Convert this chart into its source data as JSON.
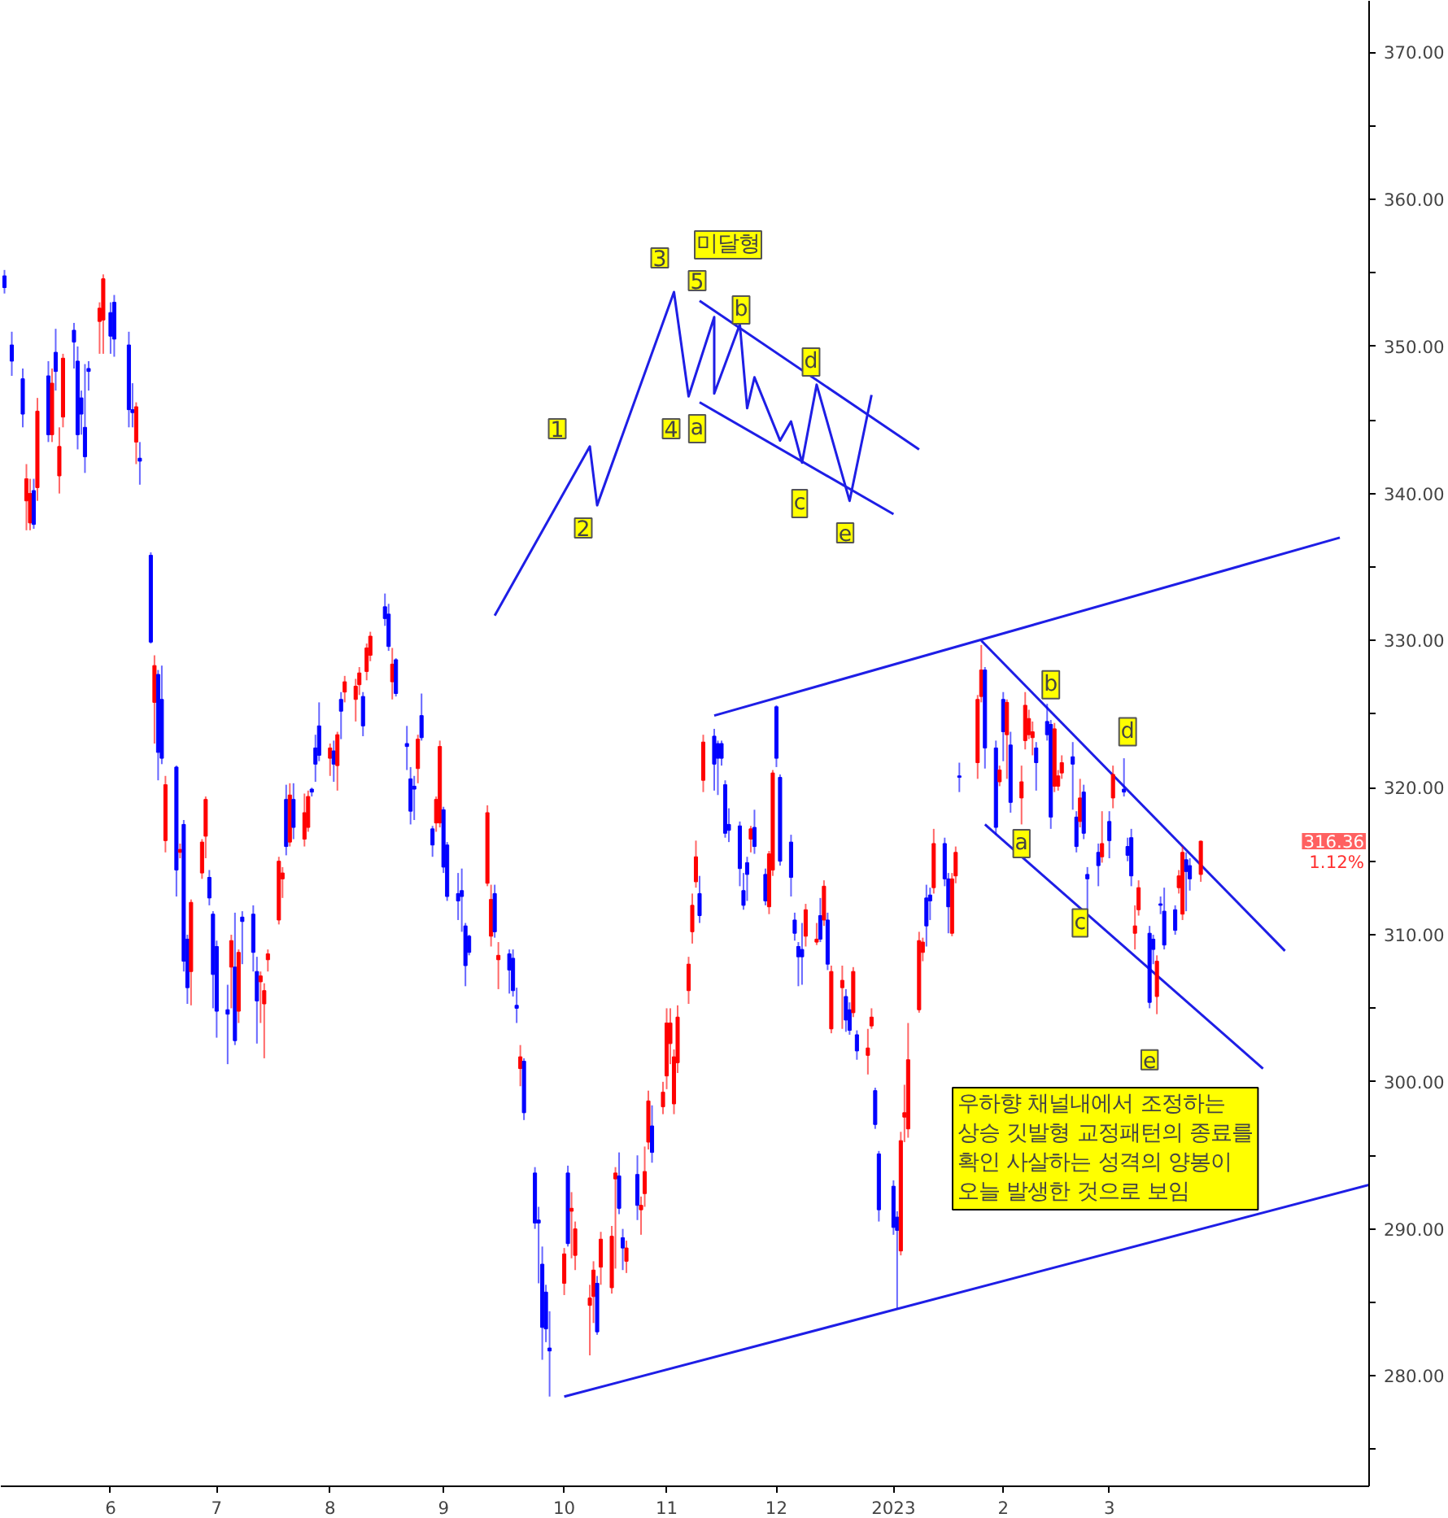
{
  "chart_data": {
    "type": "candlestick",
    "x": [
      "2022-05-04",
      "2022-05-06",
      "2022-05-09",
      "2022-05-10",
      "2022-05-11",
      "2022-05-12",
      "2022-05-13",
      "2022-05-16",
      "2022-05-17",
      "2022-05-18",
      "2022-05-19",
      "2022-05-20",
      "2022-05-23",
      "2022-05-24",
      "2022-05-25",
      "2022-05-26",
      "2022-05-27",
      "2022-05-30",
      "2022-05-31",
      "2022-06-02",
      "2022-06-03",
      "2022-06-07",
      "2022-06-08",
      "2022-06-09",
      "2022-06-10",
      "2022-06-13",
      "2022-06-14",
      "2022-06-15",
      "2022-06-16",
      "2022-06-17",
      "2022-06-20",
      "2022-06-21",
      "2022-06-22",
      "2022-06-23",
      "2022-06-24",
      "2022-06-27",
      "2022-06-28",
      "2022-06-29",
      "2022-06-30",
      "2022-07-01",
      "2022-07-04",
      "2022-07-05",
      "2022-07-06",
      "2022-07-07",
      "2022-07-08",
      "2022-07-11",
      "2022-07-12",
      "2022-07-13",
      "2022-07-14",
      "2022-07-15",
      "2022-07-18",
      "2022-07-19",
      "2022-07-20",
      "2022-07-21",
      "2022-07-22",
      "2022-07-25",
      "2022-07-26",
      "2022-07-27",
      "2022-07-28",
      "2022-07-29",
      "2022-08-01",
      "2022-08-02",
      "2022-08-03",
      "2022-08-04",
      "2022-08-05",
      "2022-08-08",
      "2022-08-09",
      "2022-08-10",
      "2022-08-11",
      "2022-08-12",
      "2022-08-16",
      "2022-08-17",
      "2022-08-18",
      "2022-08-19",
      "2022-08-22",
      "2022-08-23",
      "2022-08-24",
      "2022-08-25",
      "2022-08-26",
      "2022-08-29",
      "2022-08-30",
      "2022-08-31",
      "2022-09-01",
      "2022-09-02",
      "2022-09-05",
      "2022-09-06",
      "2022-09-07",
      "2022-09-08",
      "2022-09-13",
      "2022-09-14",
      "2022-09-15",
      "2022-09-16",
      "2022-09-19",
      "2022-09-20",
      "2022-09-21",
      "2022-09-22",
      "2022-09-23",
      "2022-09-26",
      "2022-09-27",
      "2022-09-28",
      "2022-09-29",
      "2022-09-30",
      "2022-10-04",
      "2022-10-05",
      "2022-10-06",
      "2022-10-07",
      "2022-10-11",
      "2022-10-12",
      "2022-10-13",
      "2022-10-14",
      "2022-10-17",
      "2022-10-18",
      "2022-10-19",
      "2022-10-20",
      "2022-10-21",
      "2022-10-24",
      "2022-10-25",
      "2022-10-26",
      "2022-10-27",
      "2022-10-28",
      "2022-10-31",
      "2022-11-01",
      "2022-11-02",
      "2022-11-03",
      "2022-11-04",
      "2022-11-07",
      "2022-11-08",
      "2022-11-09",
      "2022-11-10",
      "2022-11-11",
      "2022-11-14",
      "2022-11-15",
      "2022-11-16",
      "2022-11-17",
      "2022-11-18",
      "2022-11-21",
      "2022-11-22",
      "2022-11-23",
      "2022-11-24",
      "2022-11-25",
      "2022-11-28",
      "2022-11-29",
      "2022-11-30",
      "2022-12-01",
      "2022-12-02",
      "2022-12-05",
      "2022-12-06",
      "2022-12-07",
      "2022-12-08",
      "2022-12-09",
      "2022-12-12",
      "2022-12-13",
      "2022-12-14",
      "2022-12-15",
      "2022-12-16",
      "2022-12-19",
      "2022-12-20",
      "2022-12-21",
      "2022-12-22",
      "2022-12-23",
      "2022-12-26",
      "2022-12-27",
      "2022-12-28",
      "2022-12-29",
      "2023-01-02",
      "2023-01-03",
      "2023-01-04",
      "2023-01-05",
      "2023-01-06",
      "2023-01-09",
      "2023-01-10",
      "2023-01-11",
      "2023-01-12",
      "2023-01-13",
      "2023-01-16",
      "2023-01-17",
      "2023-01-18",
      "2023-01-19",
      "2023-01-20",
      "2023-01-25",
      "2023-01-26",
      "2023-01-27",
      "2023-01-30",
      "2023-01-31",
      "2023-02-01",
      "2023-02-02",
      "2023-02-03",
      "2023-02-06",
      "2023-02-07",
      "2023-02-08",
      "2023-02-09",
      "2023-02-10",
      "2023-02-13",
      "2023-02-14",
      "2023-02-15",
      "2023-02-16",
      "2023-02-17",
      "2023-02-20",
      "2023-02-21",
      "2023-02-22",
      "2023-02-23",
      "2023-02-24",
      "2023-02-27",
      "2023-02-28",
      "2023-03-02",
      "2023-03-03",
      "2023-03-06",
      "2023-03-07",
      "2023-03-08",
      "2023-03-09",
      "2023-03-10",
      "2023-03-13",
      "2023-03-14",
      "2023-03-15",
      "2023-03-16",
      "2023-03-17",
      "2023-03-20",
      "2023-03-21",
      "2023-03-22",
      "2023-03-23",
      "2023-03-24",
      "2023-03-27"
    ],
    "ohlc": [
      [
        354.8,
        355.2,
        353.6,
        354.0
      ],
      [
        350.1,
        351,
        348,
        349.0
      ],
      [
        347.8,
        348.5,
        344.5,
        345.4
      ],
      [
        339.5,
        342,
        337.5,
        341
      ],
      [
        338,
        341,
        337.5,
        340
      ],
      [
        340.2,
        341,
        337.6,
        337.9
      ],
      [
        340.4,
        346.5,
        339.5,
        345.6
      ],
      [
        348,
        349,
        343.5,
        344
      ],
      [
        344,
        348.5,
        343.5,
        347.5
      ],
      [
        349.6,
        351.2,
        347,
        348.3
      ],
      [
        341.2,
        344.5,
        340,
        343.2
      ],
      [
        345.2,
        349.5,
        344.5,
        349.2
      ],
      [
        351.1,
        351.6,
        348.5,
        350.3
      ],
      [
        349,
        350,
        343,
        344
      ],
      [
        346.5,
        347,
        344,
        345.4
      ],
      [
        344.5,
        348.8,
        341.4,
        342.5
      ],
      [
        348.5,
        349,
        347,
        348.3
      ],
      [
        351.7,
        353,
        349.5,
        352.6
      ],
      [
        351.8,
        354.9,
        349.5,
        354.6
      ],
      [
        352.3,
        353,
        349.5,
        350.7
      ],
      [
        353,
        353.5,
        349.3,
        350.5
      ],
      [
        350.1,
        351,
        344.5,
        345.7
      ],
      [
        345.7,
        347.5,
        344.5,
        345.5
      ],
      [
        343.5,
        346.2,
        342,
        345.9
      ],
      [
        342.4,
        343.5,
        340.6,
        342.2
      ],
      [
        335.8,
        336,
        329.8,
        329.9
      ],
      [
        325.8,
        329,
        323,
        328.3
      ],
      [
        327.7,
        328,
        320.5,
        322.4
      ],
      [
        326,
        328.3,
        321.6,
        322
      ],
      [
        316.4,
        320.8,
        315.6,
        320.2
      ],
      [
        321.4,
        321.5,
        312.6,
        314.4
      ],
      [
        315.6,
        316.2,
        315.2,
        315.8
      ],
      [
        317.5,
        317.8,
        307.5,
        308.2
      ],
      [
        309.7,
        310,
        305.3,
        306.4
      ],
      [
        307.5,
        312.4,
        305.2,
        312.2
      ],
      [
        314.2,
        316.5,
        313.8,
        316.3
      ],
      [
        316.7,
        319.4,
        315.2,
        319.2
      ],
      [
        313.9,
        314.4,
        312,
        312.5
      ],
      [
        311.4,
        311.6,
        305,
        307.3
      ],
      [
        309.2,
        309.6,
        303,
        304.8
      ],
      [
        304.9,
        306.6,
        301.2,
        304.6
      ],
      [
        307.8,
        310,
        305,
        309.6
      ],
      [
        307.8,
        311.5,
        302.5,
        302.8
      ],
      [
        304.8,
        309,
        304,
        308.8
      ],
      [
        311.2,
        311.6,
        308,
        310.9
      ],
      [
        311.4,
        312,
        307.5,
        308.8
      ],
      [
        307.5,
        308.5,
        302.6,
        305.5
      ],
      [
        306.8,
        307.5,
        304,
        307.2
      ],
      [
        305.3,
        306.7,
        301.6,
        306.2
      ],
      [
        308.3,
        309,
        307.5,
        308.7
      ],
      [
        311,
        315.3,
        310.7,
        315
      ],
      [
        313.8,
        314.6,
        312.5,
        314.2
      ],
      [
        319.2,
        320.2,
        315.4,
        316
      ],
      [
        316.3,
        320.3,
        316,
        319.5
      ],
      [
        319.2,
        320.3,
        316.5,
        317.3
      ],
      [
        316.5,
        319.6,
        316,
        318.3
      ],
      [
        317.3,
        319.8,
        317,
        319.4
      ],
      [
        319.9,
        320,
        319.4,
        319.7
      ],
      [
        322.7,
        323.6,
        320.4,
        321.6
      ],
      [
        324.2,
        325.8,
        321.8,
        322.2
      ],
      [
        322,
        323,
        320.8,
        322.7
      ],
      [
        322.5,
        323.2,
        320.4,
        321.6
      ],
      [
        321.5,
        323.8,
        319.8,
        323.6
      ],
      [
        326,
        326.5,
        323.3,
        325.2
      ],
      [
        326.5,
        327.6,
        325.8,
        327.2
      ],
      [
        326,
        327.4,
        324.5,
        326.9
      ],
      [
        327,
        328.2,
        326.3,
        327.8
      ],
      [
        326.2,
        326.5,
        323.5,
        324.2
      ],
      [
        327.9,
        329.8,
        327.3,
        329.5
      ],
      [
        329,
        330.6,
        328.6,
        330.3
      ],
      [
        332.3,
        333.2,
        331,
        331.5
      ],
      [
        331.8,
        332.5,
        329.3,
        329.6
      ],
      [
        327.2,
        329.5,
        326,
        328.4
      ],
      [
        328.7,
        328.8,
        326.2,
        326.4
      ],
      [
        323,
        324.2,
        321.2,
        322.8
      ],
      [
        320.6,
        321.4,
        317.5,
        318.4
      ],
      [
        320.1,
        320.8,
        317.8,
        319.9
      ],
      [
        321.3,
        323.6,
        320.3,
        323.3
      ],
      [
        324.9,
        326.4,
        323.2,
        323.4
      ],
      [
        317.2,
        317.4,
        315.3,
        316.1
      ],
      [
        317.6,
        319.4,
        317,
        319.2
      ],
      [
        317.6,
        323.2,
        317.3,
        322.8
      ],
      [
        318.5,
        318.7,
        314.2,
        314.6
      ],
      [
        316.1,
        316.3,
        312.3,
        312.6
      ],
      [
        312.8,
        314.2,
        311,
        312.3
      ],
      [
        313,
        314.5,
        310.2,
        312.6
      ],
      [
        310.6,
        310.8,
        306.5,
        307.9
      ],
      [
        309.9,
        310,
        308.6,
        308.8
      ],
      [
        313.5,
        318.8,
        313.3,
        318.3
      ],
      [
        309.9,
        313.4,
        309.2,
        312.4
      ],
      [
        312.8,
        313.4,
        309.8,
        310.2
      ],
      [
        308.3,
        309.5,
        306.3,
        308.6
      ],
      [
        308.7,
        309,
        306,
        307.6
      ],
      [
        308.4,
        309,
        305.8,
        306.2
      ],
      [
        305.2,
        306.4,
        304,
        305
      ],
      [
        300.9,
        302.5,
        299.7,
        301.7
      ],
      [
        301.4,
        301.6,
        297.4,
        297.9
      ],
      [
        293.8,
        294.2,
        290,
        290.4
      ],
      [
        290.6,
        291.5,
        286.3,
        290.4
      ],
      [
        287.6,
        288.8,
        281.1,
        283.3
      ],
      [
        285.7,
        286.2,
        282.3,
        283.2
      ],
      [
        281.9,
        284.4,
        278.6,
        281.7
      ],
      [
        286.3,
        288.7,
        285.5,
        288.3
      ],
      [
        293.8,
        294.3,
        288.8,
        289
      ],
      [
        291.2,
        292.5,
        288,
        291.4
      ],
      [
        288.2,
        290.5,
        287.2,
        290
      ],
      [
        284.8,
        286.2,
        281.4,
        285.3
      ],
      [
        285.4,
        287.8,
        283.6,
        287.2
      ],
      [
        286.3,
        286.8,
        282.8,
        283
      ],
      [
        287.4,
        289.8,
        286.2,
        289.3
      ],
      [
        286,
        290.2,
        285.6,
        289.5
      ],
      [
        293.4,
        294.2,
        287.3,
        293.8
      ],
      [
        293.6,
        295.2,
        291,
        291.4
      ],
      [
        289.4,
        290,
        287.2,
        288.7
      ],
      [
        287.8,
        289.2,
        287,
        288.7
      ],
      [
        293.7,
        295,
        290.6,
        291.6
      ],
      [
        291.3,
        292.2,
        289.6,
        291.6
      ],
      [
        292.4,
        295.6,
        291.5,
        293.9
      ],
      [
        295.9,
        299.4,
        295.4,
        298.7
      ],
      [
        297,
        298.4,
        294.5,
        295.2
      ],
      [
        298.3,
        300,
        297.8,
        299.3
      ],
      [
        300.4,
        305,
        299.5,
        304
      ],
      [
        302.6,
        305,
        301.2,
        304
      ],
      [
        298.5,
        302.2,
        297.8,
        301.7
      ],
      [
        301.3,
        305.2,
        300.6,
        304.4
      ],
      [
        306.2,
        308.5,
        305.3,
        308
      ],
      [
        310.2,
        312.8,
        309.4,
        312
      ],
      [
        313.6,
        316.4,
        313.2,
        315.3
      ],
      [
        312.8,
        314,
        310.8,
        311.3
      ],
      [
        320.5,
        323.6,
        319.7,
        323.1
      ],
      [
        323.5,
        324,
        319.8,
        321.6
      ],
      [
        323,
        323.2,
        319.5,
        322
      ],
      [
        323,
        323.2,
        321.5,
        322
      ],
      [
        320.2,
        320.5,
        316.6,
        316.9
      ],
      [
        317.5,
        318.6,
        316.3,
        317.1
      ],
      [
        317.4,
        317.7,
        313.3,
        314.5
      ],
      [
        313,
        314.2,
        311.7,
        312
      ],
      [
        314.9,
        315.3,
        312.3,
        314.1
      ],
      [
        316.5,
        317.4,
        315.6,
        317.2
      ],
      [
        317.3,
        318.5,
        315.5,
        316
      ],
      [
        314.1,
        314.5,
        312,
        312.3
      ],
      [
        311.9,
        315.7,
        311.4,
        315.5
      ],
      [
        314.4,
        321.2,
        314,
        321
      ],
      [
        325.5,
        325.6,
        321.4,
        322
      ],
      [
        320.7,
        320.9,
        314.7,
        315
      ],
      [
        316.3,
        316.8,
        312.6,
        313.9
      ],
      [
        311,
        311.5,
        309.6,
        310.1
      ],
      [
        309.2,
        309.5,
        306.5,
        308.5
      ],
      [
        309,
        310.8,
        306.6,
        308.5
      ],
      [
        309.9,
        312.1,
        309.2,
        311.7
      ],
      [
        309.5,
        310.8,
        309.3,
        309.7
      ],
      [
        311.3,
        312.5,
        309.5,
        309.7
      ],
      [
        311,
        313.7,
        310.6,
        313.3
      ],
      [
        311,
        311.5,
        307.6,
        308
      ],
      [
        303.6,
        307.9,
        303.3,
        307.5
      ],
      [
        306.4,
        307.9,
        303.6,
        306.9
      ],
      [
        305.8,
        306.3,
        303.4,
        304.2
      ],
      [
        304.9,
        305.4,
        303.2,
        303.5
      ],
      [
        304.7,
        307.8,
        304.4,
        307.5
      ],
      [
        303.2,
        303.5,
        301.5,
        302.1
      ],
      [
        301.8,
        303.6,
        300.5,
        302.3
      ],
      [
        303.8,
        305,
        303.6,
        304.4
      ],
      [
        299.4,
        299.6,
        296.8,
        297.1
      ],
      [
        295.1,
        295.3,
        290.5,
        291.3
      ],
      [
        292.9,
        293.3,
        289.6,
        290.1
      ],
      [
        290.8,
        291.2,
        284.6,
        289.9
      ],
      [
        288.5,
        296.6,
        288.2,
        296
      ],
      [
        297.6,
        299.8,
        295.9,
        297.9
      ],
      [
        296.8,
        304,
        296.2,
        301.5
      ],
      [
        304.9,
        310.2,
        304.7,
        309.6
      ],
      [
        308.8,
        309.8,
        308.2,
        309.5
      ],
      [
        312.5,
        313.4,
        309.2,
        310.6
      ],
      [
        312.7,
        313.2,
        311,
        312.3
      ],
      [
        313.2,
        317.2,
        312.8,
        316.2
      ],
      [
        316.2,
        316.6,
        313.3,
        313.8
      ],
      [
        313.8,
        314.2,
        310.1,
        311.9
      ],
      [
        310.1,
        314.2,
        309.9,
        313.8
      ],
      [
        314,
        316,
        313.5,
        315.6
      ],
      [
        320.8,
        321.7,
        319.7,
        320.7
      ],
      [
        321.7,
        326.3,
        320.6,
        326
      ],
      [
        326.2,
        329.7,
        325.8,
        328
      ],
      [
        328,
        328.2,
        321.3,
        322.7
      ],
      [
        322.7,
        323.2,
        316.8,
        317.3
      ],
      [
        320.4,
        321.5,
        320.1,
        321.2
      ],
      [
        326,
        326.5,
        321.8,
        323.8
      ],
      [
        323.6,
        326,
        320.6,
        325.8
      ],
      [
        322.9,
        323.8,
        318.3,
        319
      ],
      [
        319.3,
        321.5,
        317.5,
        320.4
      ],
      [
        323.2,
        326.5,
        322.6,
        325.6
      ],
      [
        323.6,
        325.3,
        323.3,
        324.7
      ],
      [
        323.4,
        324.5,
        322.2,
        323.8
      ],
      [
        322.7,
        323.1,
        319.8,
        321.7
      ],
      [
        324.5,
        325.7,
        323.2,
        323.6
      ],
      [
        324.3,
        324.6,
        317.2,
        318
      ],
      [
        320.1,
        324.4,
        319.7,
        324
      ],
      [
        320.1,
        321.2,
        319.8,
        320.8
      ],
      [
        321,
        322.2,
        320.6,
        321.7
      ],
      [
        322.1,
        323.1,
        318.5,
        321.6
      ],
      [
        318,
        318.4,
        315.6,
        316
      ],
      [
        317.7,
        320.6,
        317.3,
        319.3
      ],
      [
        319.7,
        320.2,
        316.5,
        316.9
      ],
      [
        314.1,
        314.6,
        311.6,
        313.8
      ],
      [
        315.6,
        316.2,
        313.3,
        314.7
      ],
      [
        315.3,
        318.4,
        314.9,
        316.2
      ],
      [
        317.7,
        318.4,
        315.2,
        316.4
      ],
      [
        319.3,
        321.5,
        318.6,
        320.9
      ],
      [
        319.9,
        322,
        319.4,
        319.7
      ],
      [
        316,
        316.6,
        315,
        315.4
      ],
      [
        316.6,
        317.2,
        313.3,
        314
      ],
      [
        310.1,
        312,
        309,
        310.6
      ],
      [
        311.7,
        313.7,
        311.3,
        313.2
      ],
      [
        310.1,
        310.6,
        305,
        305.4
      ],
      [
        309.7,
        310,
        308,
        309
      ],
      [
        305.8,
        308.6,
        304.6,
        308.2
      ],
      [
        312.1,
        312.6,
        311.4,
        312
      ],
      [
        311.6,
        313.2,
        309,
        309.3
      ],
      [
        311.7,
        312,
        310,
        310.3
      ],
      [
        313.2,
        314.4,
        312.8,
        314
      ],
      [
        311.4,
        316,
        311,
        315.6
      ],
      [
        315.1,
        315.6,
        311.6,
        314.3
      ],
      [
        314.7,
        315.2,
        313,
        313.8
      ],
      [
        314.1,
        316.4,
        313.6,
        316.36
      ]
    ],
    "colors": [
      "#0000ff",
      "#0000ff",
      "#0000ff",
      "#ff0000",
      "#ff0000",
      "#0000ff",
      "#ff0000",
      "#0000ff",
      "#ff0000",
      "#0000ff",
      "#ff0000",
      "#ff0000",
      "#0000ff",
      "#0000ff",
      "#0000ff",
      "#0000ff",
      "#0000ff",
      "#ff0000",
      "#ff0000",
      "#0000ff",
      "#0000ff",
      "#0000ff",
      "#0000ff",
      "#ff0000",
      "#0000ff",
      "#0000ff",
      "#ff0000",
      "#0000ff",
      "#0000ff",
      "#ff0000",
      "#0000ff",
      "#ff0000",
      "#0000ff",
      "#0000ff",
      "#ff0000",
      "#ff0000",
      "#ff0000",
      "#0000ff",
      "#0000ff",
      "#0000ff",
      "#0000ff",
      "#ff0000",
      "#0000ff",
      "#ff0000",
      "#0000ff",
      "#0000ff",
      "#0000ff",
      "#ff0000",
      "#ff0000",
      "#ff0000",
      "#ff0000",
      "#ff0000",
      "#0000ff",
      "#ff0000",
      "#0000ff",
      "#ff0000",
      "#ff0000",
      "#0000ff",
      "#0000ff",
      "#0000ff",
      "#ff0000",
      "#0000ff",
      "#ff0000",
      "#0000ff",
      "#ff0000",
      "#ff0000",
      "#ff0000",
      "#0000ff",
      "#ff0000",
      "#ff0000",
      "#0000ff",
      "#0000ff",
      "#ff0000",
      "#0000ff",
      "#0000ff",
      "#0000ff",
      "#0000ff",
      "#ff0000",
      "#0000ff",
      "#0000ff",
      "#ff0000",
      "#ff0000",
      "#0000ff",
      "#0000ff",
      "#0000ff",
      "#0000ff",
      "#0000ff",
      "#0000ff",
      "#ff0000",
      "#ff0000",
      "#0000ff",
      "#ff0000",
      "#0000ff",
      "#0000ff",
      "#0000ff",
      "#ff0000",
      "#0000ff",
      "#0000ff",
      "#0000ff",
      "#0000ff",
      "#0000ff",
      "#0000ff",
      "#ff0000",
      "#0000ff",
      "#ff0000",
      "#ff0000",
      "#ff0000",
      "#ff0000",
      "#0000ff",
      "#ff0000",
      "#ff0000",
      "#ff0000",
      "#0000ff",
      "#0000ff",
      "#ff0000",
      "#0000ff",
      "#ff0000",
      "#ff0000",
      "#ff0000",
      "#0000ff",
      "#ff0000",
      "#ff0000",
      "#ff0000",
      "#ff0000",
      "#ff0000",
      "#ff0000",
      "#ff0000",
      "#ff0000",
      "#0000ff",
      "#ff0000",
      "#0000ff",
      "#0000ff",
      "#0000ff",
      "#0000ff",
      "#0000ff",
      "#0000ff",
      "#0000ff",
      "#0000ff",
      "#ff0000",
      "#0000ff",
      "#0000ff",
      "#ff0000",
      "#ff0000",
      "#0000ff",
      "#0000ff",
      "#0000ff",
      "#0000ff",
      "#0000ff",
      "#0000ff",
      "#ff0000",
      "#ff0000",
      "#0000ff",
      "#ff0000",
      "#0000ff",
      "#ff0000",
      "#ff0000",
      "#0000ff",
      "#0000ff",
      "#ff0000",
      "#0000ff",
      "#ff0000",
      "#ff0000",
      "#0000ff",
      "#0000ff",
      "#0000ff",
      "#0000ff",
      "#ff0000",
      "#ff0000",
      "#ff0000",
      "#ff0000",
      "#ff0000",
      "#0000ff",
      "#0000ff",
      "#ff0000",
      "#0000ff",
      "#0000ff",
      "#ff0000",
      "#ff0000",
      "#0000ff",
      "#ff0000",
      "#ff0000",
      "#0000ff",
      "#0000ff",
      "#ff0000",
      "#0000ff",
      "#ff0000",
      "#0000ff",
      "#ff0000",
      "#ff0000",
      "#ff0000",
      "#ff0000",
      "#0000ff",
      "#0000ff",
      "#0000ff",
      "#ff0000",
      "#ff0000",
      "#ff0000",
      "#0000ff",
      "#0000ff",
      "#ff0000",
      "#0000ff",
      "#0000ff",
      "#0000ff",
      "#ff0000",
      "#0000ff",
      "#ff0000",
      "#0000ff",
      "#0000ff",
      "#0000ff",
      "#ff0000",
      "#ff0000",
      "#0000ff",
      "#0000ff",
      "#ff0000",
      "#0000ff",
      "#0000ff",
      "#0000ff",
      "#ff0000",
      "#ff0000",
      "#0000ff",
      "#0000ff",
      "#ff0000"
    ],
    "series": [
      {
        "type": "line",
        "color": "#1e1ee6",
        "x": [
          "2022-10-04",
          "2023-05-12"
        ],
        "values": [
          278.6,
          293.0
        ]
      },
      {
        "type": "line",
        "color": "#1e1ee6",
        "x": [
          "2022-11-14",
          "2023-05-04"
        ],
        "values": [
          324.9,
          337.0
        ]
      },
      {
        "type": "line",
        "color": "#1e1ee6",
        "x": [
          "2023-01-26",
          "2023-04-19"
        ],
        "values": [
          330.0,
          308.9
        ]
      },
      {
        "type": "line",
        "color": "#1e1ee6",
        "x": [
          "2023-01-27",
          "2023-04-13"
        ],
        "values": [
          317.5,
          300.9
        ]
      },
      {
        "type": "line",
        "color": "#1e1ee6",
        "x": [
          "2022-09-15",
          "2022-10-11",
          "2022-10-13",
          "2022-11-03",
          "2022-11-07",
          "2022-11-14",
          "2022-11-14",
          "2022-11-21",
          "2022-11-23",
          "2022-11-25",
          "2022-12-02",
          "2022-12-05",
          "2022-12-08",
          "2022-12-12",
          "2022-12-21",
          "2022-12-27"
        ],
        "values": [
          331.7,
          343.2,
          339.2,
          353.7,
          346.6,
          352.0,
          346.8,
          351.5,
          345.8,
          347.9,
          343.6,
          344.9,
          342.1,
          347.4,
          339.5,
          346.7
        ]
      },
      {
        "type": "line",
        "color": "#1e1ee6",
        "x": [
          "2022-11-10",
          "2023-01-09"
        ],
        "values": [
          353.1,
          343.0
        ]
      },
      {
        "type": "line",
        "color": "#1e1ee6",
        "x": [
          "2022-11-10",
          "2023-01-02"
        ],
        "values": [
          346.2,
          338.6
        ]
      }
    ],
    "annotations": [
      "우하향 채널내에서 조정하는\n상승 깃발형 교정패턴의 종료를\n확인 사살하는 성격의 양봉이\n오늘 발생한 것으로 보임",
      "316.36",
      "1.12%",
      "1",
      "2",
      "3",
      "4",
      "5",
      "미달형",
      "a",
      "b",
      "c",
      "d",
      "e",
      {
        "text": "b",
        "x": "2023-02-14",
        "y": 327.0
      },
      {
        "text": "d",
        "x": "2023-03-07",
        "y": 323.8
      },
      {
        "text": "a",
        "x": "2023-02-06",
        "y": 316.2
      },
      {
        "text": "c",
        "x": "2023-02-22",
        "y": 310.8
      },
      {
        "text": "e",
        "x": "2023-03-13",
        "y": 301.5
      }
    ],
    "xlim": [
      "2022-05-03",
      "2023-05-12"
    ],
    "xticks": [
      {
        "value": "2022-06-02",
        "label": "6"
      },
      {
        "value": "2022-07-01",
        "label": "7"
      },
      {
        "value": "2022-08-01",
        "label": "8"
      },
      {
        "value": "2022-09-01",
        "label": "9"
      },
      {
        "value": "2022-10-04",
        "label": "10"
      },
      {
        "value": "2022-11-01",
        "label": "11"
      },
      {
        "value": "2022-12-01",
        "label": "12"
      },
      {
        "value": "2023-01-02",
        "label": "2023"
      },
      {
        "value": "2023-02-01",
        "label": "2"
      },
      {
        "value": "2023-03-02",
        "label": "3"
      }
    ],
    "ylim": [
      272.5,
      373.5
    ],
    "yticks": [
      {
        "value": 275,
        "label": null
      },
      {
        "value": 280,
        "label": "280.00"
      },
      {
        "value": 285,
        "label": null
      },
      {
        "value": 290,
        "label": "290.00"
      },
      {
        "value": 295,
        "label": null
      },
      {
        "value": 300,
        "label": "300.00"
      },
      {
        "value": 305,
        "label": null
      },
      {
        "value": 310,
        "label": "310.00"
      },
      {
        "value": 315,
        "label": null
      },
      {
        "value": 320,
        "label": "320.00"
      },
      {
        "value": 325,
        "label": null
      },
      {
        "value": 330,
        "label": "330.00"
      },
      {
        "value": 335,
        "label": null
      },
      {
        "value": 340,
        "label": "340.00"
      },
      {
        "value": 345,
        "label": null
      },
      {
        "value": 350,
        "label": "350.00"
      },
      {
        "value": 355,
        "label": null
      },
      {
        "value": 360,
        "label": "360.00"
      },
      {
        "value": 365,
        "label": null
      },
      {
        "value": 370,
        "label": "370.00"
      }
    ]
  }
}
